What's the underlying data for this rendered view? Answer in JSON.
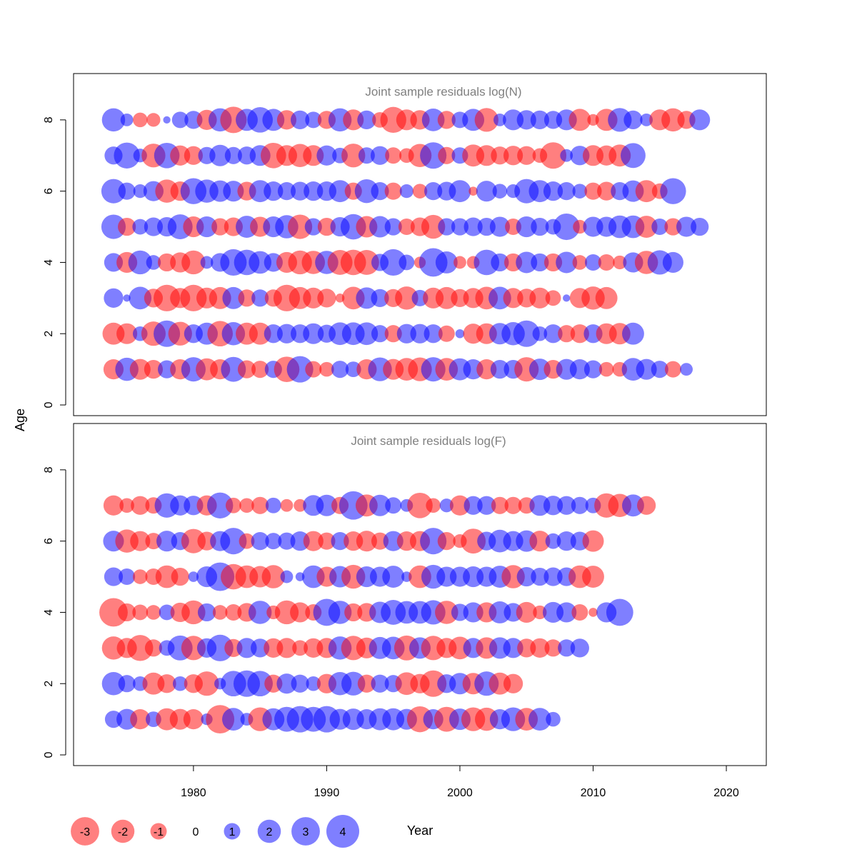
{
  "colors": {
    "negative": "#ff0000",
    "positive": "#0000ff",
    "panel_title": "#808080",
    "axis": "#000000"
  },
  "shared": {
    "xlabel": "Year",
    "ylabel": "Age",
    "xticks": [
      1980,
      1990,
      2000,
      2010,
      2020
    ],
    "yticks": [
      0,
      2,
      4,
      6,
      8
    ],
    "xlim": [
      1971,
      2023
    ],
    "ylim": [
      -0.3,
      9.3
    ],
    "legend": {
      "values": [
        -3,
        -2,
        -1,
        0,
        1,
        2,
        3,
        4
      ],
      "labels": [
        "-3",
        "-2",
        "-1",
        "0",
        "1",
        "2",
        "3",
        "4"
      ]
    }
  },
  "chart_data": [
    {
      "type": "bubble",
      "title": "Joint sample residuals log(N)",
      "years_start": 1974,
      "ages": [
        8,
        7,
        6,
        5,
        4,
        3,
        2,
        1
      ],
      "residuals": [
        [
          2.0,
          0.6,
          -0.8,
          -0.7,
          0.2,
          1.0,
          1.2,
          -1.5,
          2.0,
          -2.6,
          1.8,
          2.4,
          1.8,
          -1.4,
          1.3,
          1.0,
          -1.2,
          2.0,
          -1.6,
          1.3,
          -0.9,
          -2.5,
          -1.6,
          -1.4,
          1.9,
          -1.2,
          1.0,
          1.8,
          -2.1,
          0.6,
          1.6,
          1.4,
          1.3,
          1.2,
          1.6,
          -1.8,
          -0.5,
          -1.8,
          2.1,
          1.3,
          0.6,
          -1.6,
          -2.0,
          -1.2,
          1.6
        ],
        [
          1.2,
          2.5,
          0.7,
          -2.1,
          2.4,
          -1.5,
          -1.3,
          1.1,
          1.7,
          1.1,
          1.2,
          1.6,
          -2.4,
          -1.6,
          -2.0,
          -1.6,
          1.5,
          0.9,
          -2.1,
          1.0,
          1.3,
          -1.0,
          -0.8,
          -2.0,
          2.6,
          -1.1,
          1.0,
          -1.8,
          -1.6,
          -1.2,
          -1.4,
          -1.3,
          -0.8,
          -2.6,
          0.6,
          1.4,
          -1.6,
          -1.5,
          -1.8,
          2.3
        ],
        [
          2.2,
          1.1,
          0.7,
          1.5,
          -2.0,
          -1.4,
          2.5,
          2.0,
          1.7,
          1.6,
          -1.3,
          1.8,
          1.4,
          1.2,
          1.3,
          1.4,
          1.4,
          1.8,
          -1.1,
          2.1,
          1.2,
          -1.1,
          0.7,
          -0.8,
          1.2,
          1.3,
          1.8,
          -0.3,
          1.6,
          0.8,
          0.7,
          2.2,
          1.8,
          1.4,
          1.2,
          0.8,
          -1.1,
          -1.3,
          1.2,
          1.7,
          -1.8,
          -0.9,
          2.5
        ],
        [
          2.2,
          -1.2,
          0.9,
          1.3,
          1.4,
          2.3,
          -1.6,
          1.6,
          -1.1,
          -1.3,
          1.8,
          -1.5,
          1.6,
          2.0,
          -2.2,
          1.1,
          -1.2,
          1.4,
          2.4,
          -1.7,
          1.7,
          1.1,
          -1.0,
          -1.3,
          -2.1,
          1.1,
          1.1,
          1.3,
          1.2,
          1.5,
          -1.0,
          1.6,
          1.2,
          0.9,
          2.6,
          -0.7,
          1.5,
          1.5,
          1.9,
          1.9,
          -1.8,
          1.0,
          -1.1,
          1.5,
          1.2
        ],
        [
          1.3,
          -1.6,
          2.1,
          0.8,
          -1.2,
          -1.5,
          -2.1,
          0.6,
          1.3,
          2.6,
          2.4,
          1.9,
          1.3,
          -1.6,
          -2.1,
          -2.0,
          2.0,
          -2.3,
          -2.4,
          -2.3,
          1.1,
          2.6,
          0.9,
          -0.5,
          3.0,
          1.8,
          -0.6,
          -0.6,
          2.4,
          1.2,
          -1.2,
          1.7,
          1.2,
          -1.2,
          1.7,
          -0.8,
          1.0,
          -1.0,
          -0.7,
          1.5,
          -2.0,
          2.2,
          1.6
        ],
        [
          1.4,
          0.2,
          1.9,
          -1.3,
          -2.6,
          -1.5,
          -2.6,
          -1.6,
          -1.8,
          1.8,
          -1.1,
          1.1,
          -1.1,
          -2.6,
          -1.8,
          -1.6,
          -1.3,
          -0.3,
          -1.9,
          1.7,
          1.2,
          -1.2,
          -2.0,
          1.0,
          -1.6,
          -1.8,
          -1.2,
          -1.5,
          -1.9,
          1.9,
          -1.5,
          -1.3,
          -1.6,
          -0.9,
          0.2,
          -1.5,
          -2.0,
          -1.8
        ],
        [
          -1.8,
          -1.6,
          0.8,
          -2.2,
          2.6,
          -2.1,
          1.3,
          1.8,
          -2.4,
          2.0,
          -1.8,
          -1.8,
          1.3,
          1.4,
          1.3,
          1.6,
          1.2,
          1.9,
          1.9,
          1.9,
          1.1,
          -1.1,
          1.4,
          1.4,
          1.3,
          -1.0,
          0.3,
          -1.5,
          -1.6,
          1.7,
          2.0,
          2.6,
          0.8,
          1.3,
          -1.1,
          -1.3,
          1.3,
          -1.6,
          -1.7,
          1.8
        ],
        [
          -1.5,
          2.0,
          -1.6,
          -1.3,
          1.2,
          -1.5,
          2.2,
          -1.8,
          -1.5,
          2.3,
          -1.2,
          -1.1,
          1.1,
          -2.4,
          2.6,
          -1.0,
          -0.8,
          1.1,
          0.9,
          -1.5,
          2.1,
          -1.6,
          -1.9,
          -2.1,
          2.2,
          -1.9,
          1.8,
          1.5,
          -1.5,
          1.3,
          1.3,
          -2.2,
          1.7,
          -1.3,
          1.6,
          1.5,
          1.2,
          -0.8,
          -0.8,
          1.9,
          1.6,
          1.1,
          -1.0,
          0.6
        ]
      ],
      "row_start_years": [
        1974,
        1974,
        1974,
        1974,
        1974,
        1974,
        1974,
        1974
      ]
    },
    {
      "type": "bubble",
      "title": "Joint sample residuals log(F)",
      "years_start": 1974,
      "ages": [
        7,
        6,
        5,
        4,
        3,
        2,
        1
      ],
      "residuals": [
        [
          -1.5,
          -0.8,
          -1.3,
          -1.0,
          2.2,
          1.5,
          1.4,
          -1.5,
          2.5,
          -0.9,
          -0.8,
          -1.1,
          0.9,
          -0.6,
          -0.6,
          1.6,
          1.7,
          -1.1,
          3.0,
          -1.8,
          1.7,
          1.0,
          0.6,
          -2.4,
          -0.8,
          0.7,
          -1.5,
          1.3,
          1.3,
          -1.1,
          -1.1,
          -1.0,
          1.6,
          1.4,
          1.3,
          1.1,
          0.9,
          -2.2,
          -2.0,
          1.8,
          -1.3
        ],
        [
          1.6,
          -2.0,
          -1.5,
          -1.0,
          1.6,
          1.2,
          -2.2,
          -1.3,
          1.5,
          2.6,
          -0.9,
          1.2,
          1.0,
          1.1,
          1.4,
          -1.5,
          -1.1,
          1.2,
          -1.4,
          -1.6,
          -1.1,
          1.5,
          -1.4,
          -1.5,
          2.6,
          -1.2,
          -0.7,
          -2.3,
          1.3,
          1.9,
          1.5,
          1.7,
          -1.6,
          0.9,
          1.4,
          1.3,
          -1.7
        ],
        [
          1.3,
          1.0,
          -0.8,
          -1.0,
          -1.9,
          -1.2,
          0.4,
          1.6,
          3.0,
          -2.4,
          -1.9,
          -1.7,
          -2.0,
          0.6,
          0.3,
          1.9,
          -1.5,
          1.7,
          -2.1,
          1.6,
          1.5,
          1.8,
          0.4,
          -1.9,
          2.1,
          1.5,
          1.5,
          1.6,
          1.5,
          1.8,
          -2.0,
          1.4,
          1.2,
          1.3,
          1.3,
          -1.9,
          -1.8
        ],
        [
          -3.0,
          -1.2,
          -0.9,
          -0.8,
          0.9,
          -1.4,
          -2.1,
          1.2,
          -0.8,
          -1.0,
          -1.3,
          2.0,
          -0.7,
          -2.1,
          -1.5,
          -1.0,
          2.7,
          2.0,
          -1.2,
          -1.3,
          1.7,
          2.3,
          1.9,
          1.9,
          2.2,
          -2.0,
          1.1,
          1.5,
          -1.5,
          1.8,
          1.3,
          -1.6,
          -0.7,
          1.6,
          1.5,
          -1.0,
          -0.3,
          1.5,
          2.7
        ],
        [
          -2.0,
          -1.5,
          -2.5,
          -1.1,
          0.9,
          2.3,
          -2.2,
          1.4,
          2.6,
          -1.2,
          1.5,
          1.3,
          -1.4,
          -1.5,
          -0.9,
          -1.4,
          -1.5,
          2.0,
          -2.2,
          -1.6,
          1.8,
          1.9,
          -2.3,
          1.7,
          -2.2,
          -1.5,
          -1.9,
          1.5,
          -1.7,
          1.7,
          1.5,
          -1.3,
          -1.4,
          -1.1,
          1.1,
          1.3
        ],
        [
          2.0,
          1.1,
          0.8,
          -1.8,
          -1.3,
          0.8,
          -1.3,
          -2.2,
          0.5,
          2.4,
          2.6,
          2.4,
          -1.2,
          1.5,
          1.2,
          0.8,
          -1.4,
          2.0,
          2.1,
          -1.2,
          1.2,
          1.1,
          -1.9,
          -1.4,
          -2.6,
          1.3,
          1.7,
          -1.7,
          2.2,
          -1.8,
          -1.4
        ],
        [
          1.1,
          1.6,
          -1.5,
          0.9,
          -1.8,
          -1.6,
          -1.5,
          0.5,
          -3.0,
          1.9,
          0.6,
          -2.1,
          1.8,
          2.3,
          2.6,
          2.3,
          2.6,
          1.6,
          1.7,
          1.5,
          1.8,
          1.8,
          1.6,
          -2.5,
          1.5,
          -2.3,
          1.7,
          -2.1,
          -2.0,
          1.5,
          2.1,
          -1.9,
          1.9,
          0.8
        ]
      ],
      "row_start_years": [
        1974,
        1974,
        1974,
        1974,
        1974,
        1974,
        1974
      ]
    }
  ]
}
